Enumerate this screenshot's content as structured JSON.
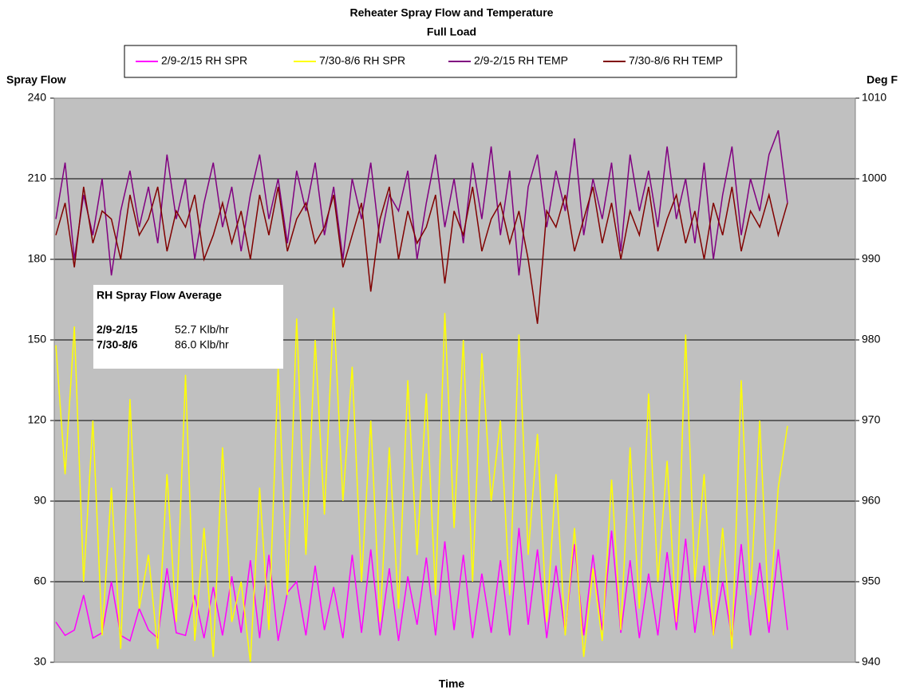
{
  "chart_data": {
    "type": "line",
    "title": "Reheater Spray Flow and Temperature",
    "subtitle": "Full Load",
    "x_label": "Time",
    "y_label": "Spray Flow",
    "y2_label": "Deg F",
    "ylim": [
      30,
      240
    ],
    "yticks": [
      30,
      60,
      90,
      120,
      150,
      180,
      210,
      240
    ],
    "y2lim": [
      940,
      1010
    ],
    "y2ticks": [
      940,
      950,
      960,
      970,
      980,
      990,
      1000,
      1010
    ],
    "grid": true,
    "legend": "top",
    "background": "#c0c0c0",
    "series": [
      {
        "name": "2/9-2/15 RH SPR",
        "color": "#ff00ff",
        "values": [
          45,
          40,
          42,
          55,
          39,
          41,
          60,
          40,
          38,
          50,
          42,
          39,
          65,
          41,
          40,
          55,
          39,
          58,
          40,
          62,
          41,
          68,
          39,
          70,
          38,
          56,
          60,
          40,
          66,
          42,
          58,
          39,
          70,
          41,
          72,
          40,
          65,
          38,
          62,
          44,
          69,
          40,
          75,
          42,
          70,
          39,
          63,
          41,
          68,
          40,
          80,
          44,
          72,
          39,
          66,
          41,
          74,
          40,
          70,
          42,
          79,
          41,
          68,
          39,
          63,
          40,
          71,
          42,
          76,
          41,
          66,
          40,
          60,
          39,
          74,
          40,
          67,
          41,
          72,
          42
        ]
      },
      {
        "name": "7/30-8/6 RH SPR",
        "color": "#ffff00",
        "values": [
          148,
          100,
          155,
          60,
          120,
          40,
          95,
          35,
          128,
          50,
          70,
          35,
          100,
          45,
          137,
          38,
          80,
          32,
          110,
          45,
          60,
          30,
          95,
          42,
          140,
          55,
          158,
          70,
          150,
          85,
          162,
          90,
          140,
          60,
          120,
          45,
          110,
          50,
          135,
          70,
          130,
          55,
          160,
          80,
          150,
          60,
          145,
          90,
          120,
          55,
          152,
          70,
          115,
          45,
          100,
          40,
          80,
          32,
          65,
          38,
          98,
          42,
          110,
          50,
          130,
          60,
          105,
          45,
          152,
          60,
          100,
          40,
          80,
          35,
          135,
          55,
          120,
          45,
          95,
          118
        ]
      },
      {
        "name": "2/9-2/15 RH TEMP",
        "color": "#800080",
        "axis": "y2",
        "values": [
          995,
          1002,
          990,
          998,
          993,
          1000,
          988,
          996,
          1001,
          994,
          999,
          992,
          1003,
          995,
          1000,
          990,
          997,
          1002,
          994,
          999,
          991,
          998,
          1003,
          995,
          1000,
          992,
          1001,
          996,
          1002,
          993,
          999,
          990,
          1000,
          995,
          1002,
          992,
          998,
          996,
          1001,
          990,
          997,
          1003,
          994,
          1000,
          992,
          1002,
          995,
          1004,
          993,
          1001,
          988,
          999,
          1003,
          994,
          1001,
          996,
          1005,
          993,
          1000,
          995,
          1002,
          991,
          1003,
          996,
          1001,
          994,
          1004,
          995,
          1000,
          992,
          1002,
          990,
          998,
          1004,
          993,
          1000,
          996,
          1003,
          1006,
          997
        ]
      },
      {
        "name": "7/30-8/6 RH TEMP",
        "color": "#800000",
        "axis": "y2",
        "values": [
          993,
          997,
          989,
          999,
          992,
          996,
          995,
          990,
          998,
          993,
          995,
          999,
          991,
          996,
          994,
          998,
          990,
          993,
          997,
          992,
          996,
          990,
          998,
          993,
          999,
          991,
          995,
          997,
          992,
          994,
          998,
          989,
          993,
          997,
          986,
          995,
          999,
          990,
          996,
          992,
          994,
          998,
          987,
          996,
          993,
          999,
          991,
          995,
          997,
          992,
          996,
          990,
          982,
          996,
          994,
          998,
          991,
          995,
          999,
          992,
          997,
          990,
          996,
          993,
          999,
          991,
          995,
          998,
          992,
          996,
          990,
          997,
          993,
          999,
          991,
          996,
          994,
          998,
          993,
          997
        ]
      }
    ],
    "annotation": {
      "title": "RH Spray Flow Average",
      "rows": [
        [
          "2/9-2/15",
          "52.7 Klb/hr"
        ],
        [
          "7/30-8/6",
          "86.0 Klb/hr"
        ]
      ]
    }
  }
}
